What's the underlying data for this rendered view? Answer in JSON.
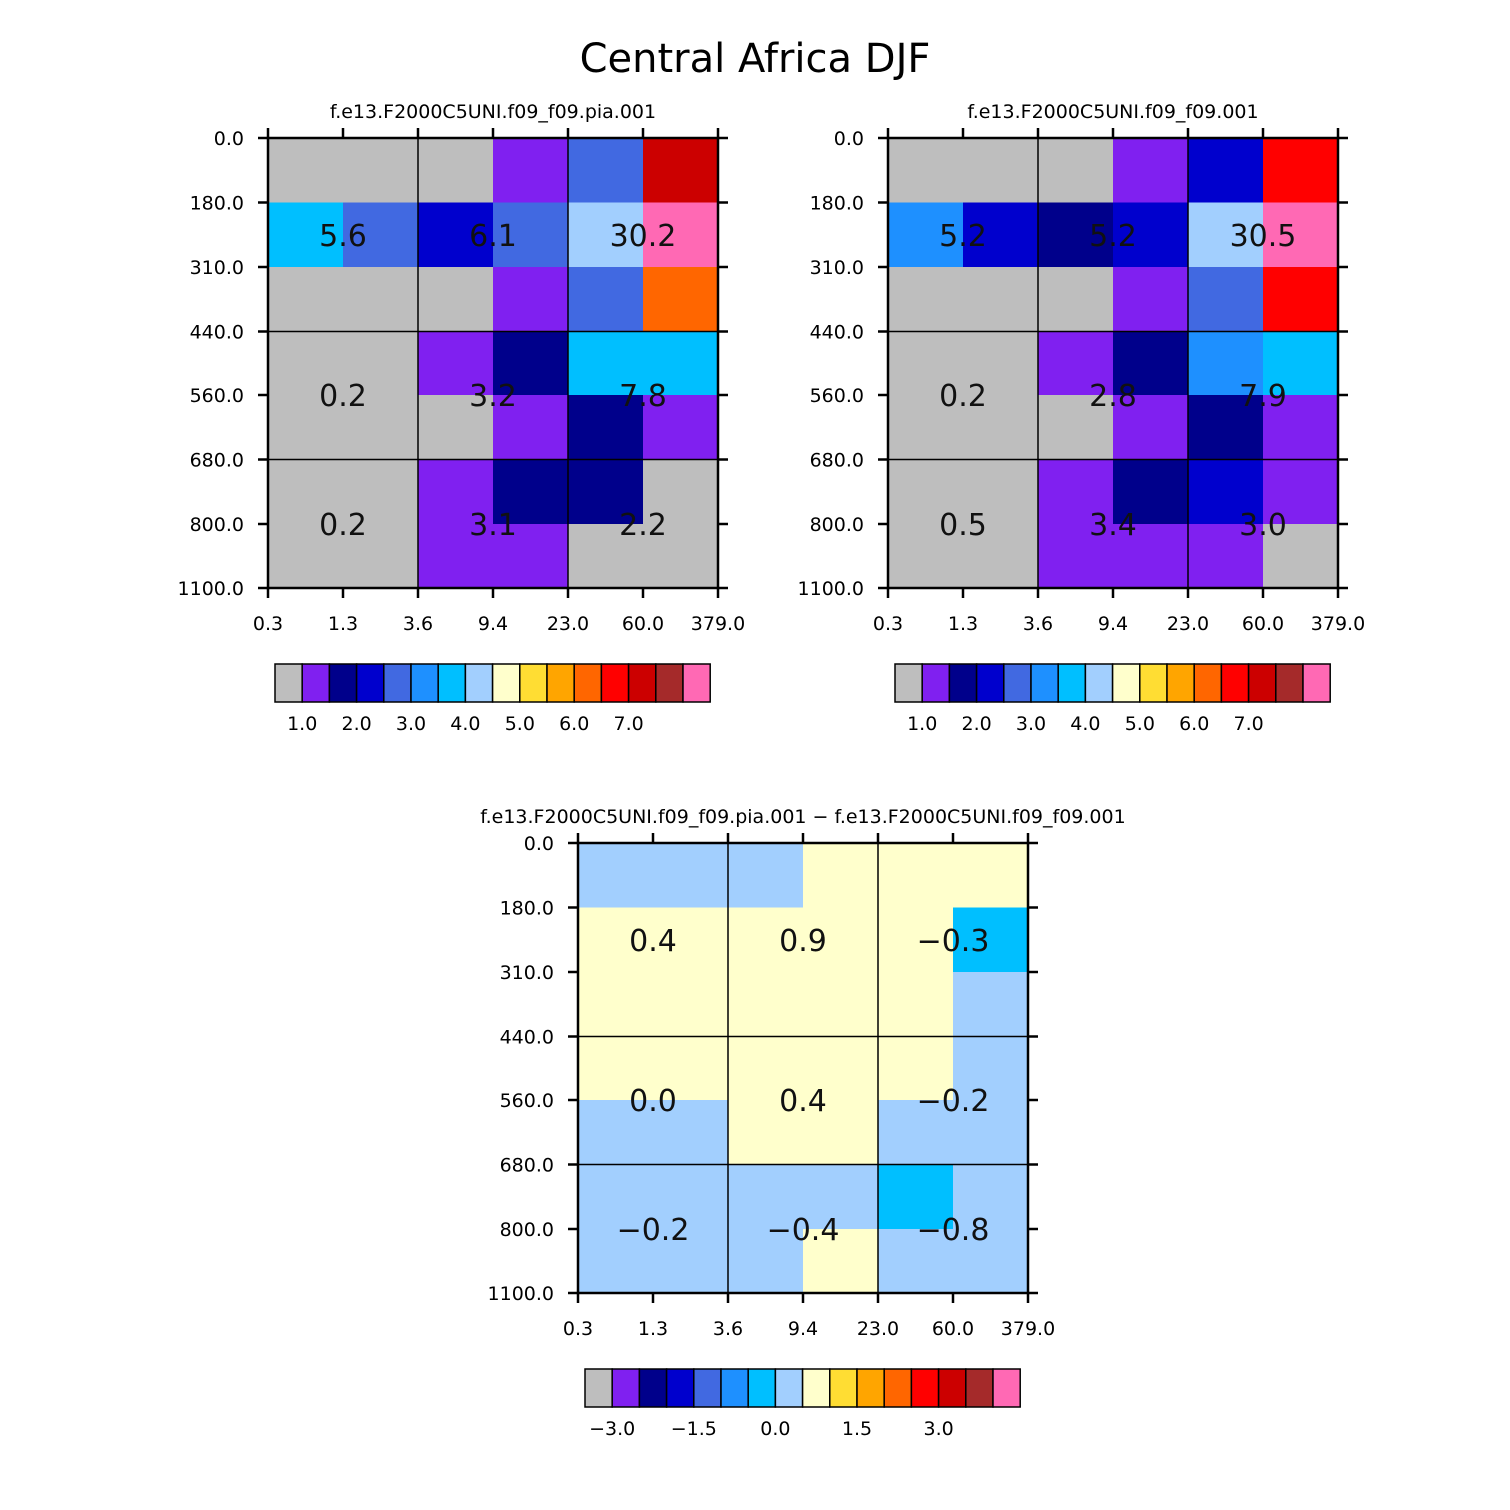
{
  "figure": {
    "title": "Central Africa DJF"
  },
  "axes": {
    "x_ticks": [
      "0.3",
      "1.3",
      "3.6",
      "9.4",
      "23.0",
      "60.0",
      "379.0"
    ],
    "y_ticks": [
      "0.0",
      "180.0",
      "310.0",
      "440.0",
      "560.0",
      "680.0",
      "800.0",
      "1100.0"
    ]
  },
  "palette": [
    "#bebebe",
    "#8020f0",
    "#00008b",
    "#0000cd",
    "#4169e1",
    "#1e90ff",
    "#00bfff",
    "#a2cffe",
    "#ffffcc",
    "#ffdd33",
    "#ffa500",
    "#ff6600",
    "#ff0000",
    "#cc0000",
    "#a52a2a",
    "#ff69b4"
  ],
  "chart_data": [
    {
      "type": "heatmap",
      "title": "f.e13.F2000C5UNI.f09_f09.pia.001",
      "x_bin_edges": [
        0.3,
        1.3,
        3.6,
        9.4,
        23.0,
        60.0,
        379.0
      ],
      "y_bin_edges": [
        0.0,
        180.0,
        310.0,
        440.0,
        560.0,
        680.0,
        800.0,
        1100.0
      ],
      "cell_color_index": [
        [
          0,
          0,
          0,
          1,
          4,
          13
        ],
        [
          6,
          4,
          3,
          4,
          7,
          15
        ],
        [
          0,
          0,
          0,
          1,
          4,
          11
        ],
        [
          0,
          0,
          1,
          2,
          6,
          6
        ],
        [
          0,
          0,
          0,
          1,
          2,
          1
        ],
        [
          0,
          0,
          1,
          2,
          2,
          0
        ],
        [
          0,
          0,
          1,
          1,
          0,
          0
        ]
      ],
      "summary_labels": [
        [
          "5.6",
          "6.1",
          "30.2"
        ],
        [
          "0.2",
          "3.2",
          "7.8"
        ],
        [
          "0.2",
          "3.1",
          "2.2"
        ]
      ],
      "colorbar": {
        "tick_labels": [
          "1.0",
          "2.0",
          "3.0",
          "4.0",
          "5.0",
          "6.0",
          "7.0"
        ],
        "tick_after_box": [
          1,
          3,
          5,
          7,
          9,
          11,
          13
        ]
      }
    },
    {
      "type": "heatmap",
      "title": "f.e13.F2000C5UNI.f09_f09.001",
      "x_bin_edges": [
        0.3,
        1.3,
        3.6,
        9.4,
        23.0,
        60.0,
        379.0
      ],
      "y_bin_edges": [
        0.0,
        180.0,
        310.0,
        440.0,
        560.0,
        680.0,
        800.0,
        1100.0
      ],
      "cell_color_index": [
        [
          0,
          0,
          0,
          1,
          3,
          12
        ],
        [
          5,
          3,
          2,
          3,
          7,
          15
        ],
        [
          0,
          0,
          0,
          1,
          4,
          12
        ],
        [
          0,
          0,
          1,
          2,
          5,
          6
        ],
        [
          0,
          0,
          0,
          1,
          2,
          1
        ],
        [
          0,
          0,
          1,
          2,
          3,
          1
        ],
        [
          0,
          0,
          1,
          1,
          1,
          0
        ]
      ],
      "summary_labels": [
        [
          "5.2",
          "5.2",
          "30.5"
        ],
        [
          "0.2",
          "2.8",
          "7.9"
        ],
        [
          "0.5",
          "3.4",
          "3.0"
        ]
      ],
      "colorbar": {
        "tick_labels": [
          "1.0",
          "2.0",
          "3.0",
          "4.0",
          "5.0",
          "6.0",
          "7.0"
        ],
        "tick_after_box": [
          1,
          3,
          5,
          7,
          9,
          11,
          13
        ]
      }
    },
    {
      "type": "heatmap",
      "title": "f.e13.F2000C5UNI.f09_f09.pia.001 − f.e13.F2000C5UNI.f09_f09.001",
      "x_bin_edges": [
        0.3,
        1.3,
        3.6,
        9.4,
        23.0,
        60.0,
        379.0
      ],
      "y_bin_edges": [
        0.0,
        180.0,
        310.0,
        440.0,
        560.0,
        680.0,
        800.0,
        1100.0
      ],
      "cell_color_index": [
        [
          7,
          7,
          7,
          8,
          8,
          8
        ],
        [
          8,
          8,
          8,
          8,
          8,
          6
        ],
        [
          8,
          8,
          8,
          8,
          8,
          7
        ],
        [
          8,
          8,
          8,
          8,
          8,
          7
        ],
        [
          7,
          7,
          8,
          8,
          7,
          7
        ],
        [
          7,
          7,
          7,
          7,
          6,
          7
        ],
        [
          7,
          7,
          7,
          8,
          7,
          7
        ]
      ],
      "summary_labels": [
        [
          "0.4",
          "0.9",
          "−0.3"
        ],
        [
          "0.0",
          "0.4",
          "−0.2"
        ],
        [
          "−0.2",
          "−0.4",
          "−0.8"
        ]
      ],
      "colorbar": {
        "tick_labels": [
          "−3.0",
          "−1.5",
          "0.0",
          "1.5",
          "3.0"
        ],
        "tick_after_box": [
          1,
          4,
          7,
          10,
          13
        ]
      }
    }
  ]
}
